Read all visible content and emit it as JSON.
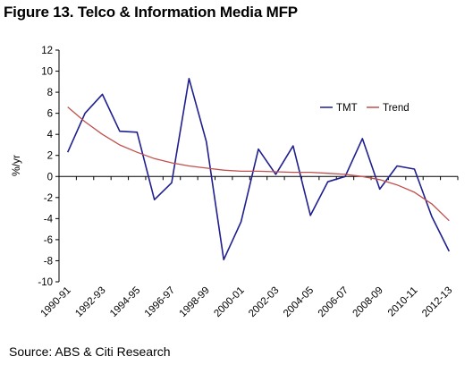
{
  "figure_title": "Figure 13. Telco & Information Media MFP",
  "source_note": "Source: ABS & Citi Research",
  "colors": {
    "tmt": "#1f1f8f",
    "trend": "#c0504d",
    "axis": "#000000"
  },
  "chart_data": {
    "type": "line",
    "title": "",
    "xlabel": "",
    "ylabel": "%/yr",
    "ylim": [
      -10,
      12
    ],
    "yticks": [
      -10,
      -8,
      -6,
      -4,
      -2,
      0,
      2,
      4,
      6,
      8,
      10,
      12
    ],
    "grid": false,
    "legend_position": "top-right",
    "categories": [
      "1990-91",
      "1991-92",
      "1992-93",
      "1993-94",
      "1994-95",
      "1995-96",
      "1996-97",
      "1997-98",
      "1998-99",
      "1999-00",
      "2000-01",
      "2001-02",
      "2002-03",
      "2003-04",
      "2004-05",
      "2005-06",
      "2006-07",
      "2007-08",
      "2008-09",
      "2009-10",
      "2010-11",
      "2011-12",
      "2012-13"
    ],
    "tick_labels": [
      "1990-91",
      "",
      "1992-93",
      "",
      "1994-95",
      "",
      "1996-97",
      "",
      "1998-99",
      "",
      "2000-01",
      "",
      "2002-03",
      "",
      "2004-05",
      "",
      "2006-07",
      "",
      "2008-09",
      "",
      "2010-11",
      "",
      "2012-13"
    ],
    "series": [
      {
        "name": "TMT",
        "color": "#1f1f8f",
        "values": [
          2.3,
          6.0,
          7.8,
          4.3,
          4.2,
          -2.2,
          -0.6,
          9.3,
          3.3,
          -7.9,
          -4.3,
          2.6,
          0.2,
          2.9,
          -3.7,
          -0.5,
          0.0,
          3.6,
          -1.2,
          1.0,
          0.7,
          -3.8,
          -7.1
        ]
      },
      {
        "name": "Trend",
        "color": "#c0504d",
        "values": [
          6.6,
          5.2,
          4.0,
          3.0,
          2.3,
          1.7,
          1.3,
          1.0,
          0.8,
          0.6,
          0.5,
          0.5,
          0.45,
          0.4,
          0.4,
          0.3,
          0.2,
          0.0,
          -0.3,
          -0.8,
          -1.5,
          -2.6,
          -4.2
        ]
      }
    ]
  }
}
